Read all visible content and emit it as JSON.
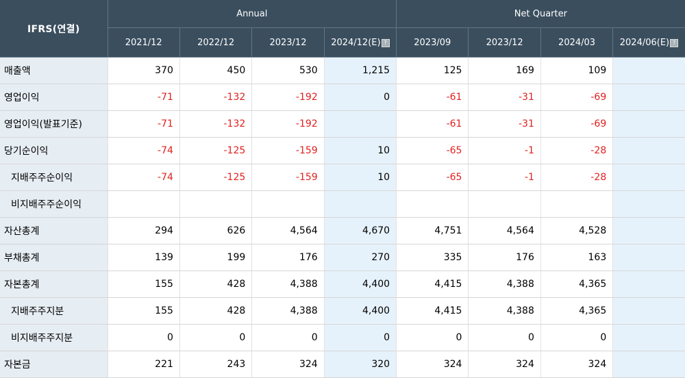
{
  "header": {
    "corner_label": "IFRS(연결)",
    "groups": [
      {
        "label": "Annual",
        "span": 4
      },
      {
        "label": "Net Quarter",
        "span": 4
      }
    ],
    "periods": [
      {
        "label": "2021/12",
        "estimate": false
      },
      {
        "label": "2022/12",
        "estimate": false
      },
      {
        "label": "2023/12",
        "estimate": false
      },
      {
        "label": "2024/12(E)",
        "estimate": true
      },
      {
        "label": "2023/09",
        "estimate": false
      },
      {
        "label": "2023/12",
        "estimate": false
      },
      {
        "label": "2024/03",
        "estimate": false
      },
      {
        "label": "2024/06(E)",
        "estimate": true
      }
    ],
    "estimate_icon": "help-icon"
  },
  "colors": {
    "header_bg": "#3a4e5e",
    "label_bg": "#e6edf3",
    "estimate_bg": "#e6f2fb",
    "negative": "#e0201e"
  },
  "rows": [
    {
      "label": "매출액",
      "sub": false,
      "values": [
        "370",
        "450",
        "530",
        "1,215",
        "125",
        "169",
        "109",
        ""
      ]
    },
    {
      "label": "영업이익",
      "sub": false,
      "values": [
        "-71",
        "-132",
        "-192",
        "0",
        "-61",
        "-31",
        "-69",
        ""
      ]
    },
    {
      "label": "영업이익(발표기준)",
      "sub": false,
      "values": [
        "-71",
        "-132",
        "-192",
        "",
        "-61",
        "-31",
        "-69",
        ""
      ]
    },
    {
      "label": "당기순이익",
      "sub": false,
      "values": [
        "-74",
        "-125",
        "-159",
        "10",
        "-65",
        "-1",
        "-28",
        ""
      ]
    },
    {
      "label": "지배주주순이익",
      "sub": true,
      "values": [
        "-74",
        "-125",
        "-159",
        "10",
        "-65",
        "-1",
        "-28",
        ""
      ]
    },
    {
      "label": "비지배주주순이익",
      "sub": true,
      "values": [
        "",
        "",
        "",
        "",
        "",
        "",
        "",
        ""
      ]
    },
    {
      "label": "자산총계",
      "sub": false,
      "values": [
        "294",
        "626",
        "4,564",
        "4,670",
        "4,751",
        "4,564",
        "4,528",
        ""
      ]
    },
    {
      "label": "부채총계",
      "sub": false,
      "values": [
        "139",
        "199",
        "176",
        "270",
        "335",
        "176",
        "163",
        ""
      ]
    },
    {
      "label": "자본총계",
      "sub": false,
      "values": [
        "155",
        "428",
        "4,388",
        "4,400",
        "4,415",
        "4,388",
        "4,365",
        ""
      ]
    },
    {
      "label": "지배주주지분",
      "sub": true,
      "values": [
        "155",
        "428",
        "4,388",
        "4,400",
        "4,415",
        "4,388",
        "4,365",
        ""
      ]
    },
    {
      "label": "비지배주주지분",
      "sub": true,
      "values": [
        "0",
        "0",
        "0",
        "0",
        "0",
        "0",
        "0",
        ""
      ]
    },
    {
      "label": "자본금",
      "sub": false,
      "values": [
        "221",
        "243",
        "324",
        "320",
        "324",
        "324",
        "324",
        ""
      ]
    }
  ]
}
